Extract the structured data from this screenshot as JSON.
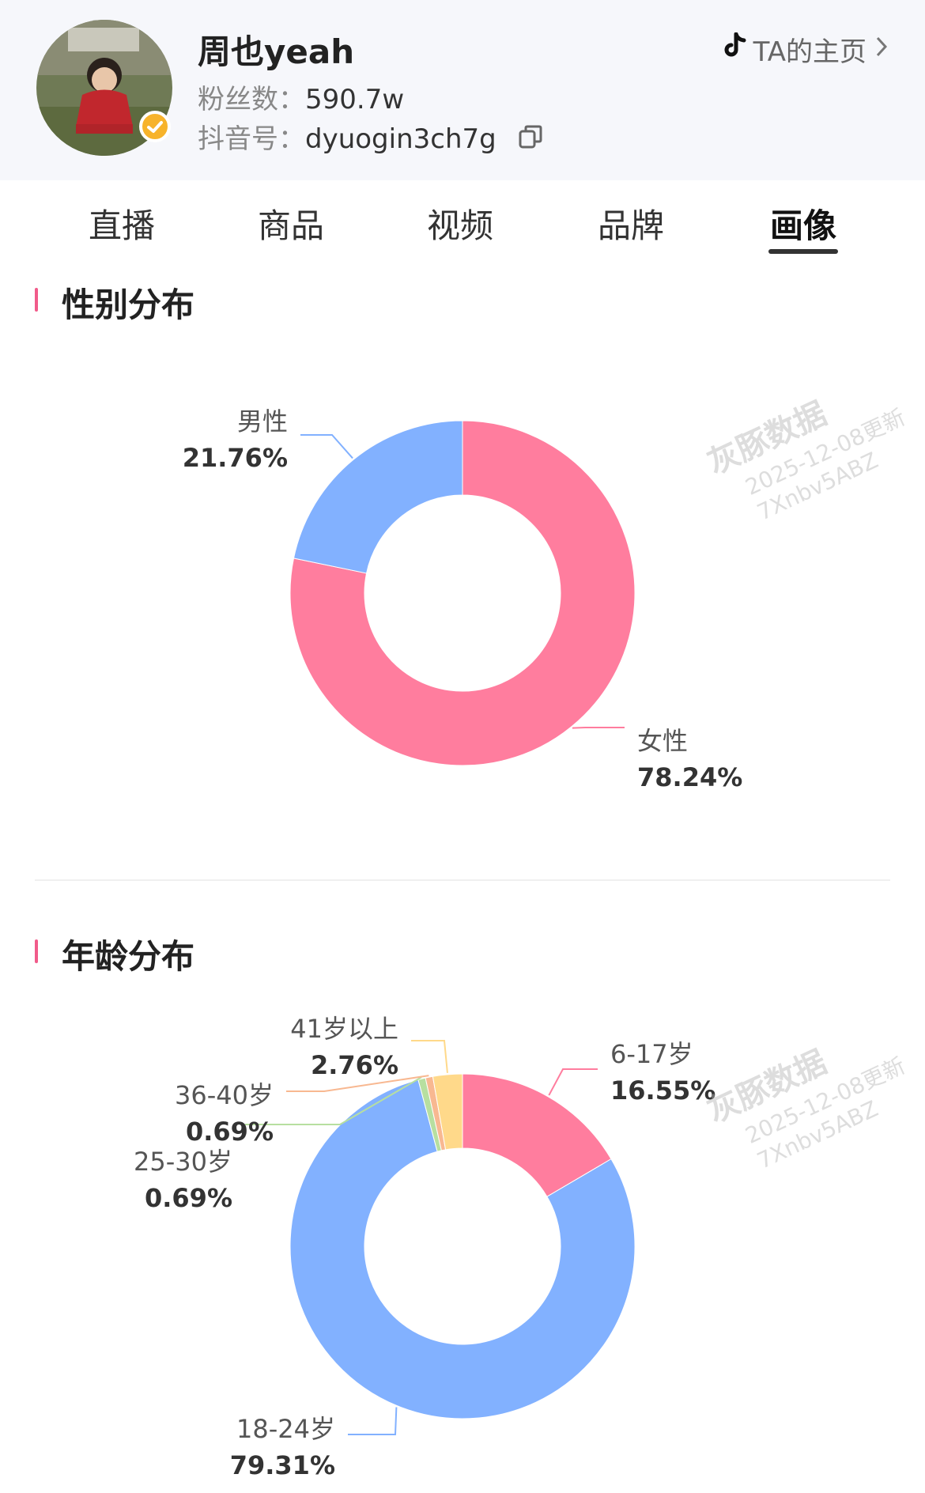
{
  "profile": {
    "name": "周也yeah",
    "fans_label": "粉丝数：",
    "fans_value": "590.7w",
    "id_label": "抖音号：",
    "id_value": "dyuogin3ch7g",
    "homepage_label": "TA的主页"
  },
  "tabs": [
    "直播",
    "商品",
    "视频",
    "品牌",
    "画像"
  ],
  "active_tab": "画像",
  "watermark": {
    "brand": "灰豚数据",
    "line1": "2025-12-08更新",
    "line2": "7Xnbv5ABZ"
  },
  "sections": {
    "gender_title": "性别分布",
    "age_title": "年龄分布"
  },
  "colors": {
    "pink": "#ff7d9e",
    "blue": "#82b1ff",
    "green": "#b7dfa0",
    "orange": "#f8b891",
    "yellow": "#ffd98a",
    "accent": "#f15b8a",
    "verify": "#f7b32b"
  },
  "chart_data": [
    {
      "type": "pie",
      "title": "性别分布",
      "categories": [
        "女性",
        "男性"
      ],
      "values": [
        78.24,
        21.76
      ],
      "labels": [
        "78.24%",
        "21.76%"
      ]
    },
    {
      "type": "pie",
      "title": "年龄分布",
      "categories": [
        "6-17岁",
        "18-24岁",
        "25-30岁",
        "36-40岁",
        "41岁以上"
      ],
      "values": [
        16.55,
        79.31,
        0.69,
        0.69,
        2.76
      ],
      "labels": [
        "16.55%",
        "79.31%",
        "0.69%",
        "0.69%",
        "2.76%"
      ]
    }
  ]
}
